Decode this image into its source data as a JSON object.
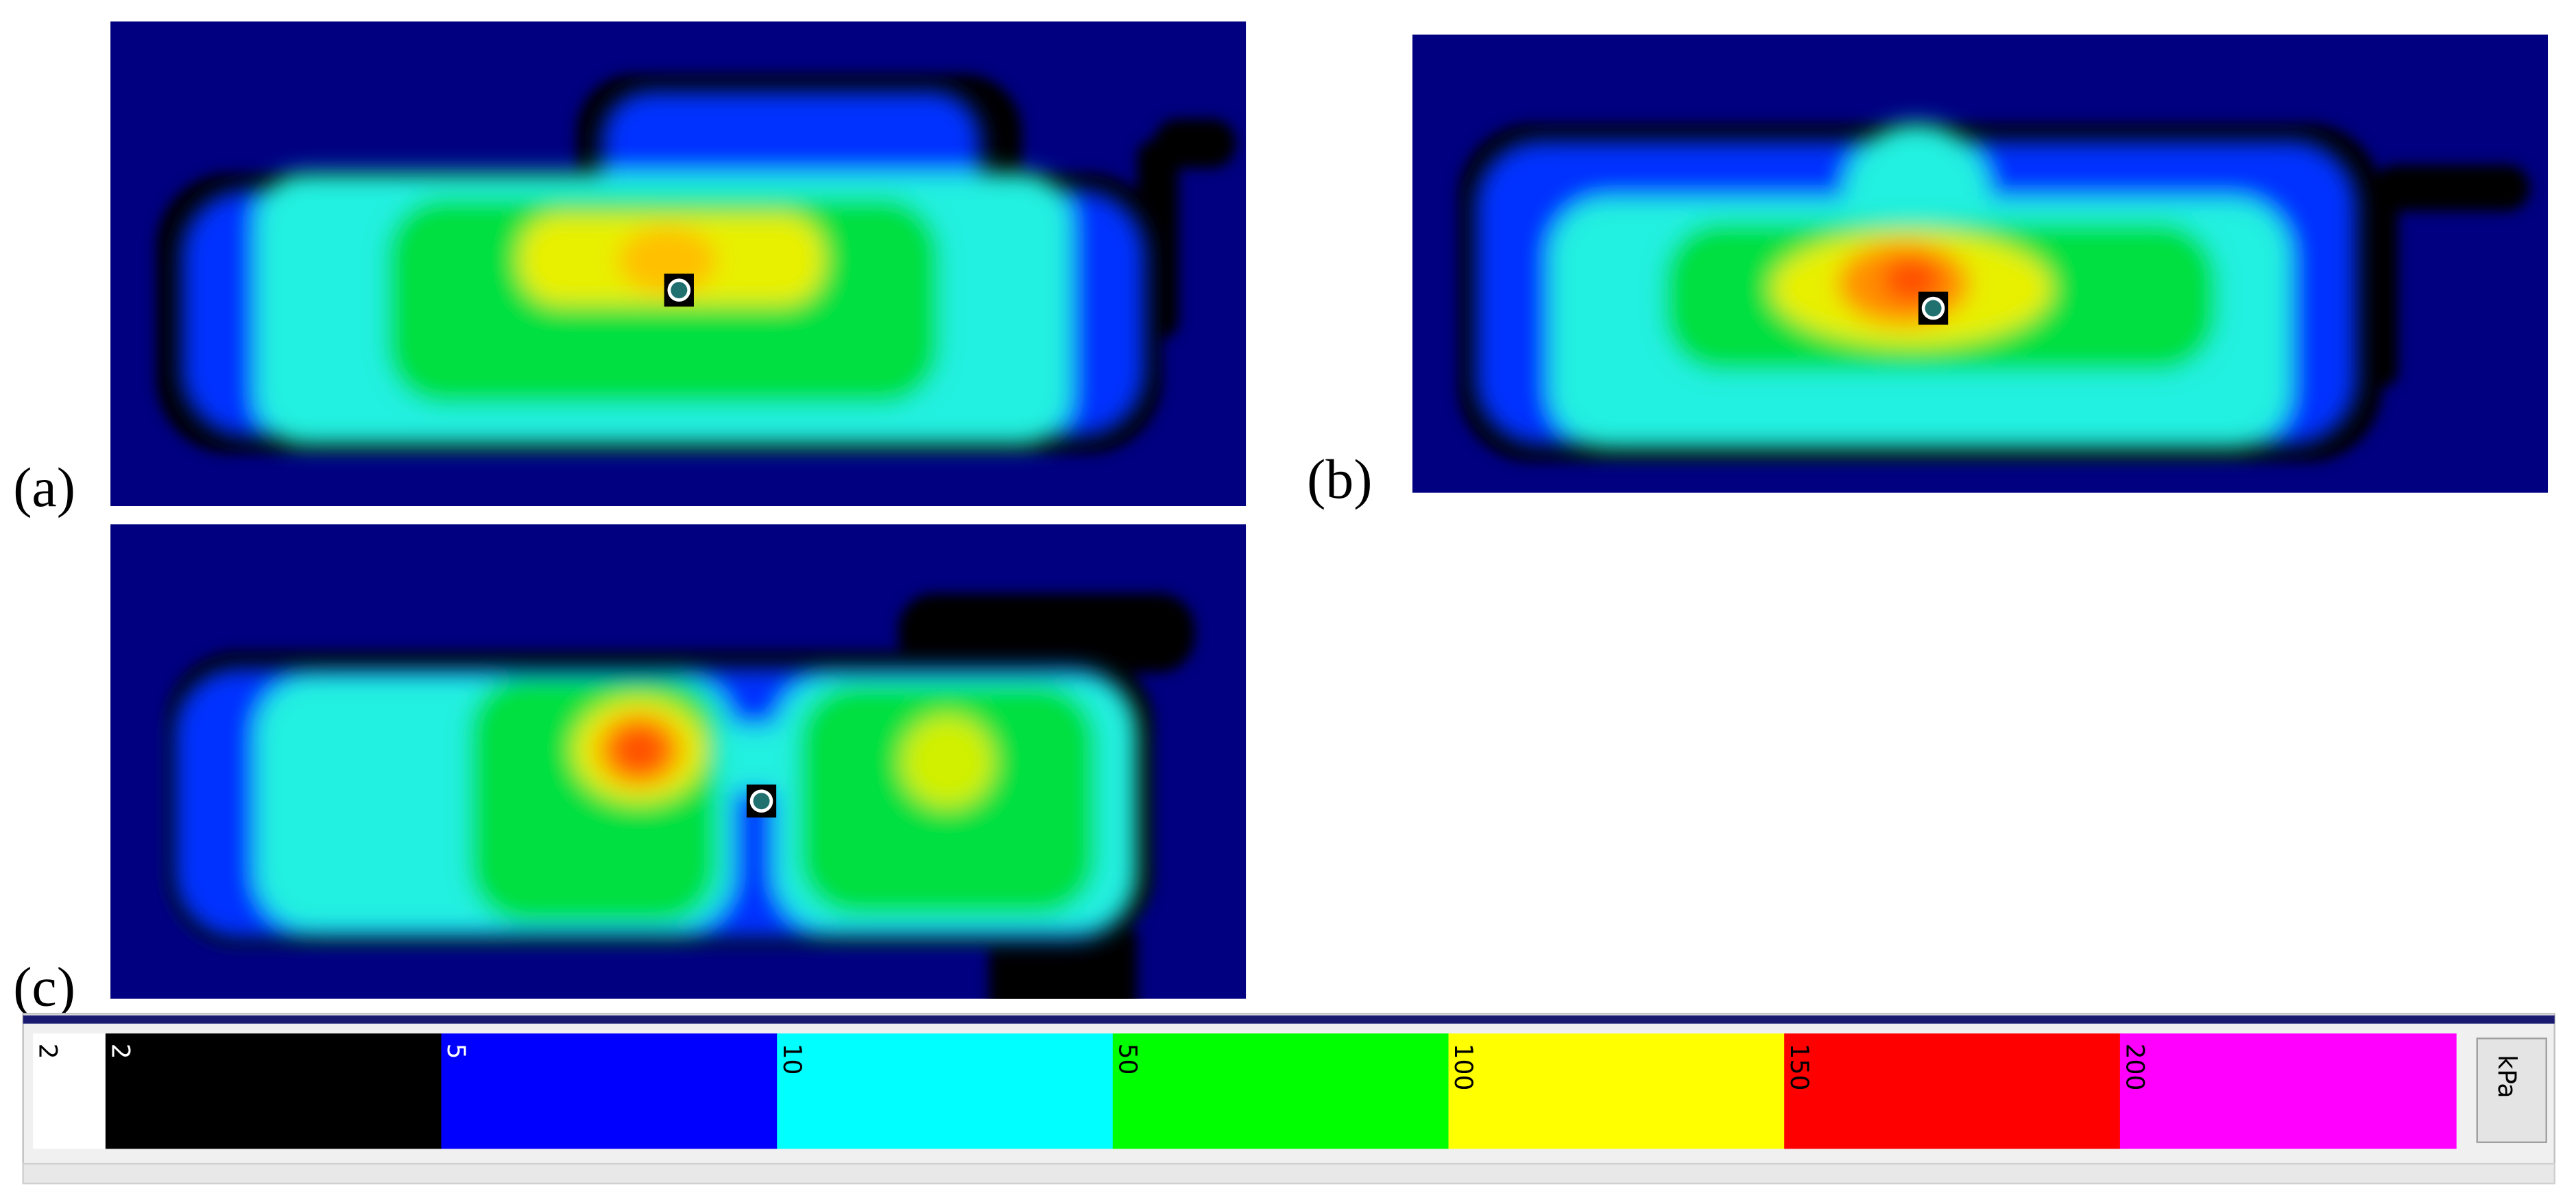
{
  "panels": [
    {
      "label": "(a)"
    },
    {
      "label": "(b)"
    },
    {
      "label": "(c)"
    }
  ],
  "legend": {
    "min_label": "2",
    "entries": [
      {
        "label": "2",
        "color": "#000000",
        "text_color": "#ffffff"
      },
      {
        "label": "5",
        "color": "#0000ff",
        "text_color": "#ffffff"
      },
      {
        "label": "10",
        "color": "#00ffff",
        "text_color": "#000000"
      },
      {
        "label": "50",
        "color": "#00ff00",
        "text_color": "#000000"
      },
      {
        "label": "100",
        "color": "#ffff00",
        "text_color": "#000000"
      },
      {
        "label": "150",
        "color": "#ff0000",
        "text_color": "#000000"
      },
      {
        "label": "200",
        "color": "#ff00ff",
        "text_color": "#000000"
      }
    ],
    "unit": "kPa"
  }
}
